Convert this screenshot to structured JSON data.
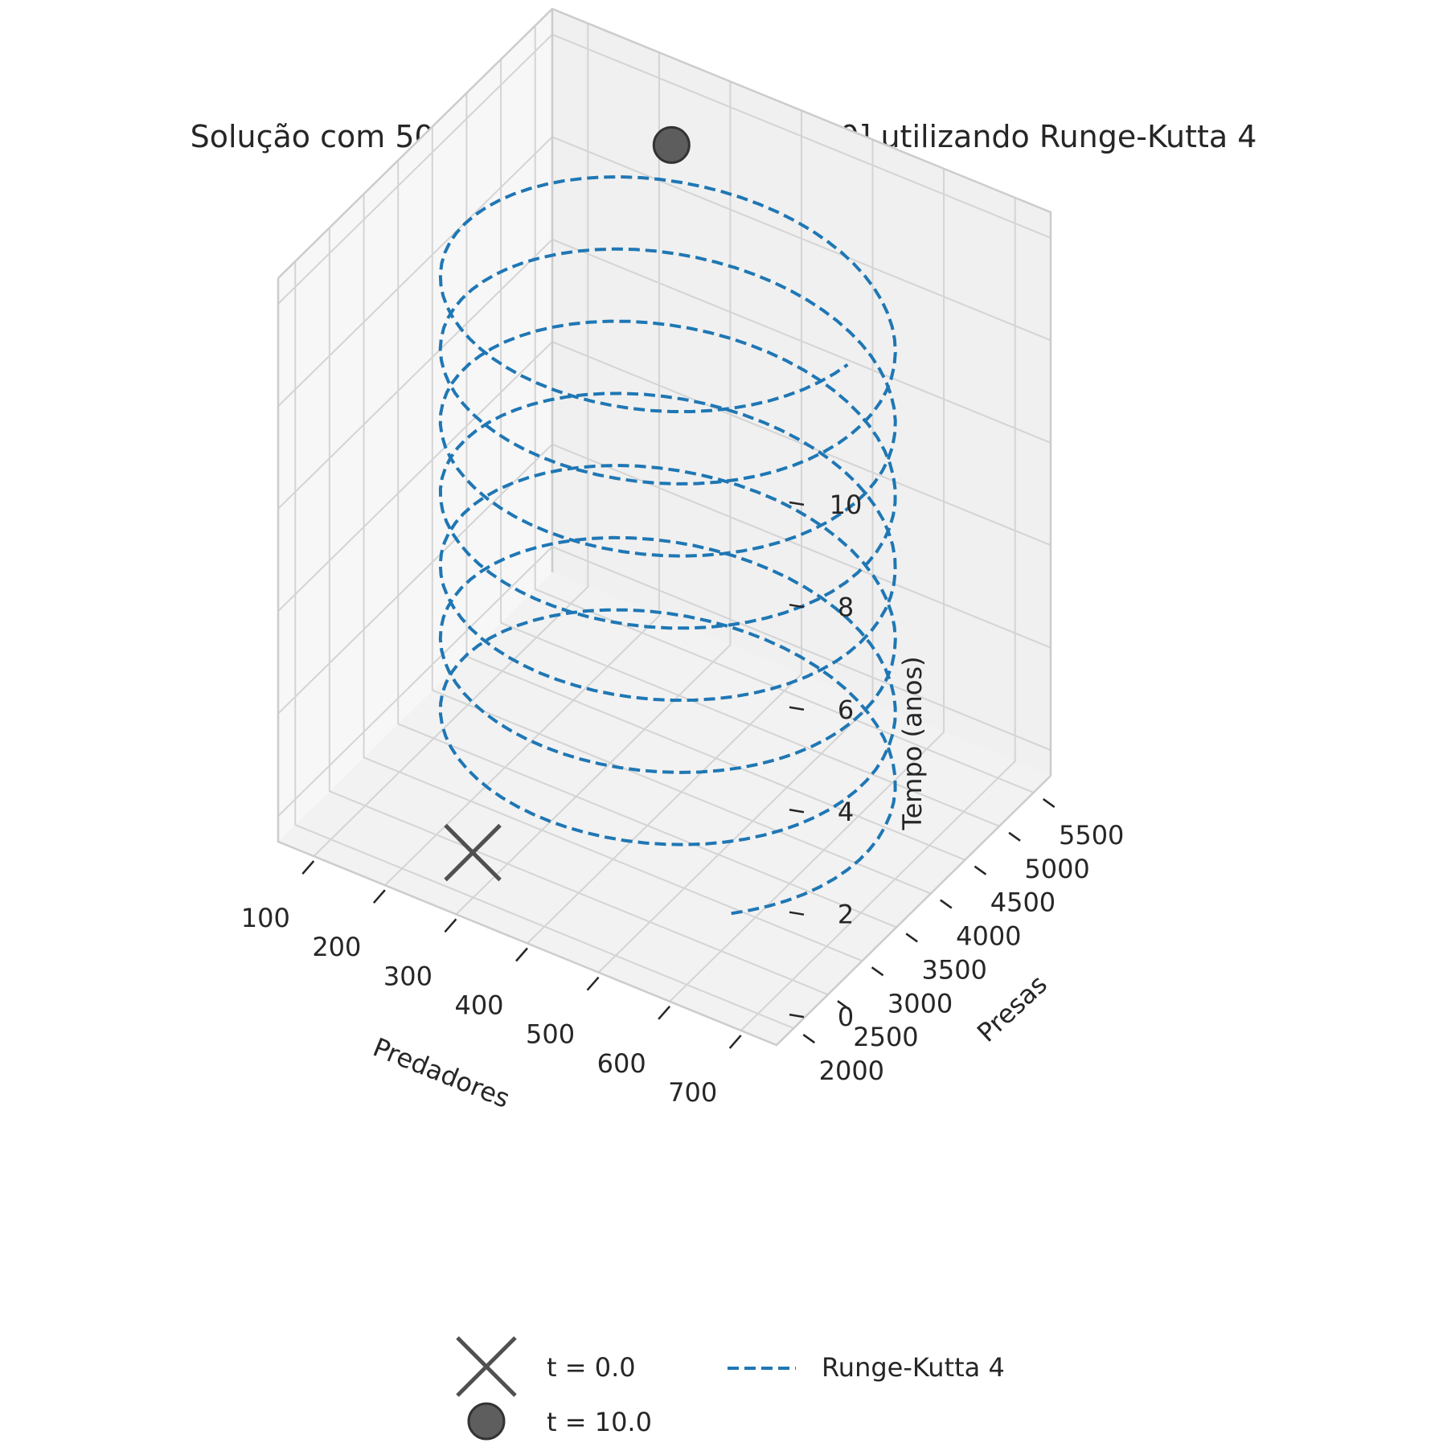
{
  "chart_data": {
    "type": "line",
    "projection": "3d",
    "title": "Solução com 500 pontos no intervalo [0, 10] utilizando Runge-Kutta 4",
    "axes": {
      "x": {
        "label": "Predadores",
        "range": [
          50,
          750
        ],
        "ticks": [
          100,
          200,
          300,
          400,
          500,
          600,
          700
        ]
      },
      "y": {
        "label": "Presas",
        "range": [
          1750,
          5750
        ],
        "ticks": [
          2000,
          2500,
          3000,
          3500,
          4000,
          4500,
          5000,
          5500
        ]
      },
      "z": {
        "label": "Tempo (anos)",
        "range": [
          -0.5,
          10.5
        ],
        "ticks": [
          0,
          2,
          4,
          6,
          8,
          10
        ]
      }
    },
    "grid": true,
    "legend": {
      "placement": "bottom-center",
      "columns": 2
    },
    "series": [
      {
        "name": "Runge-Kutta 4",
        "style": "dashed",
        "color": "#1f77b4",
        "curve": "helix",
        "t_range": [
          0,
          10
        ],
        "points": 500,
        "cycles": 7.1,
        "predadores_range": [
          120,
          680
        ],
        "presas_range": [
          2200,
          5400
        ]
      }
    ],
    "markers": [
      {
        "name": "t = 0.0",
        "symbol": "x",
        "color": "#505050",
        "predadores": 280,
        "presas": 2200,
        "t": 0.0
      },
      {
        "name": "t = 10.0",
        "symbol": "circle",
        "color": "#505050",
        "predadores": 280,
        "presas": 5100,
        "t": 10.0
      }
    ]
  }
}
